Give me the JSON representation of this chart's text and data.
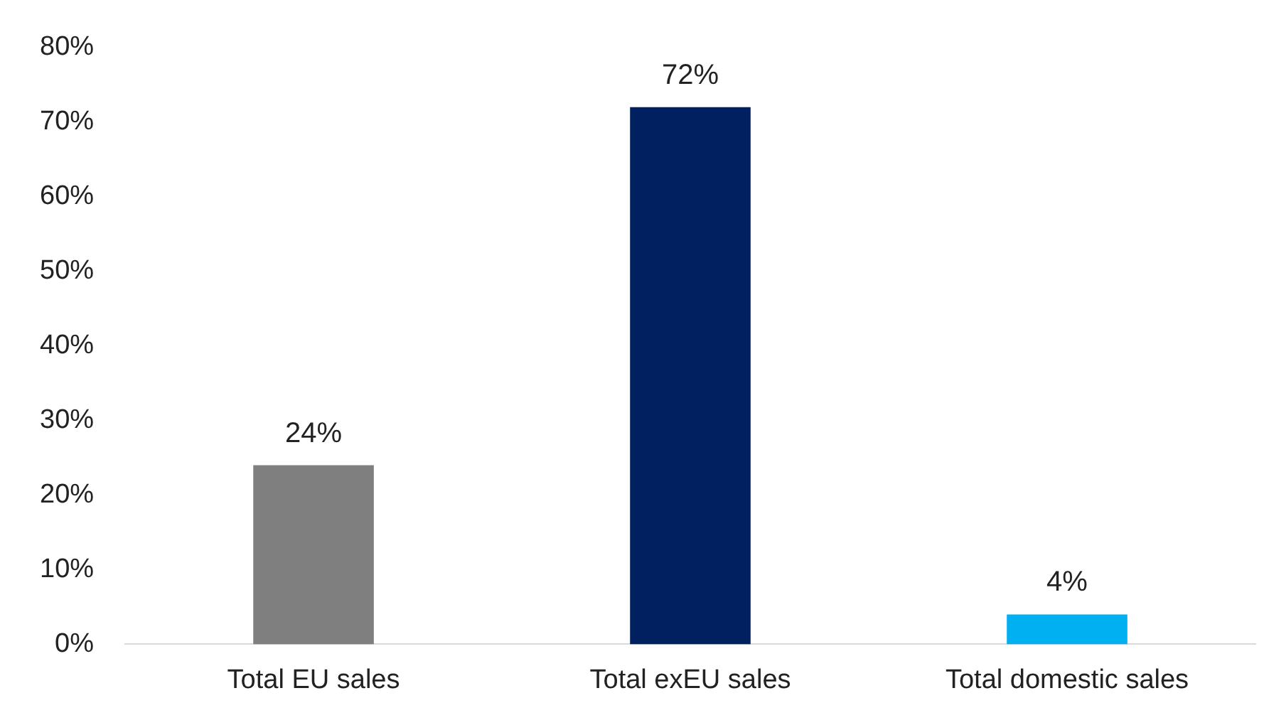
{
  "chart_data": {
    "type": "bar",
    "categories": [
      "Total EU sales",
      "Total exEU sales",
      "Total domestic sales"
    ],
    "values": [
      24,
      72,
      4
    ],
    "colors": [
      "#7f7f7f",
      "#002060",
      "#00b0f0"
    ],
    "value_labels": [
      "24%",
      "72%",
      "4%"
    ],
    "ylim": [
      0,
      80
    ],
    "yticks": [
      {
        "value": 0,
        "label": "0%"
      },
      {
        "value": 10,
        "label": "10%"
      },
      {
        "value": 20,
        "label": "20%"
      },
      {
        "value": 30,
        "label": "30%"
      },
      {
        "value": 40,
        "label": "40%"
      },
      {
        "value": 50,
        "label": "50%"
      },
      {
        "value": 60,
        "label": "60%"
      },
      {
        "value": 70,
        "label": "70%"
      },
      {
        "value": 80,
        "label": "80%"
      }
    ],
    "grid": false,
    "legend": false
  }
}
